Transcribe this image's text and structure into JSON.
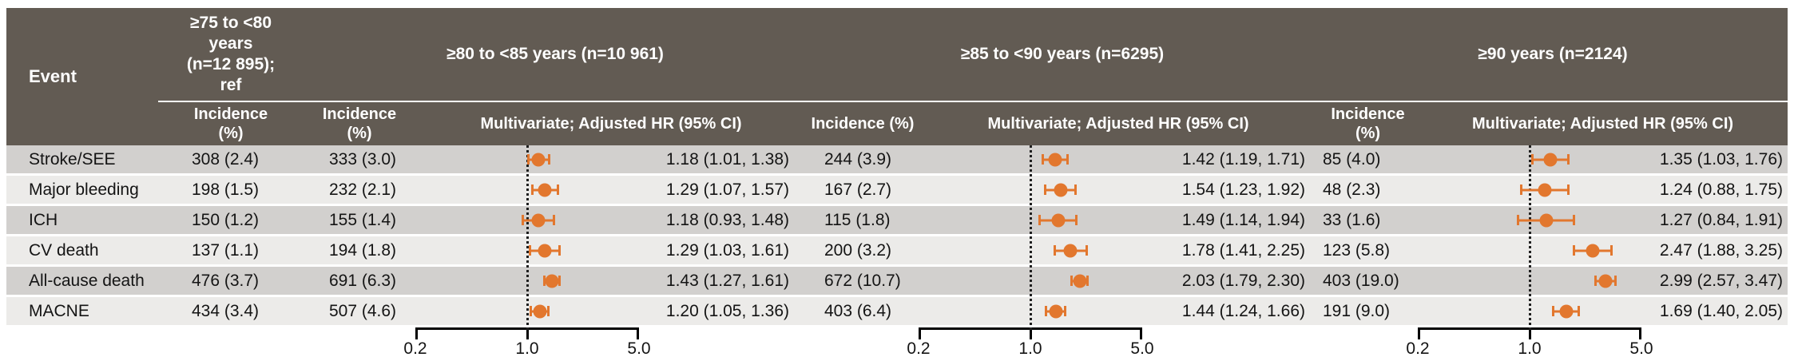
{
  "colors": {
    "header_bg": "#625B53",
    "header_text": "#ffffff",
    "row_dark": "#d2d0ce",
    "row_light": "#ecebe9",
    "marker_orange": "#E2772E",
    "axis_black": "#000000"
  },
  "chart_data": {
    "type": "forest",
    "x_scale": "log",
    "x_min": 0.2,
    "x_max": 5.0,
    "x_ticks": [
      0.2,
      1.0,
      5.0
    ],
    "x_tick_labels": [
      "0.2",
      "1.0",
      "5.0"
    ],
    "reference_line": 1.0,
    "event_header": "Event",
    "events": [
      "Stroke/SEE",
      "Major bleeding",
      "ICH",
      "CV death",
      "All-cause death",
      "MACNE"
    ],
    "reference_group": {
      "title": "≥75 to <80\nyears\n(n=12 895);\nref",
      "incidence_header": "Incidence\n(%)",
      "incidence": [
        "308 (2.4)",
        "198 (1.5)",
        "150 (1.2)",
        "137 (1.1)",
        "476 (3.7)",
        "434 (3.4)"
      ]
    },
    "groups": [
      {
        "title": "≥80 to <85 years (n=10 961)",
        "incidence_header": "Incidence\n(%)",
        "hr_header": "Multivariate; Adjusted HR (95% CI)",
        "incidence": [
          "333 (3.0)",
          "232 (2.1)",
          "155 (1.4)",
          "194 (1.8)",
          "691 (6.3)",
          "507 (4.6)"
        ],
        "hr": [
          [
            1.18,
            1.01,
            1.38
          ],
          [
            1.29,
            1.07,
            1.57
          ],
          [
            1.18,
            0.93,
            1.48
          ],
          [
            1.29,
            1.03,
            1.61
          ],
          [
            1.43,
            1.27,
            1.61
          ],
          [
            1.2,
            1.05,
            1.36
          ]
        ],
        "hr_labels": [
          "1.18 (1.01, 1.38)",
          "1.29 (1.07, 1.57)",
          "1.18 (0.93, 1.48)",
          "1.29 (1.03, 1.61)",
          "1.43 (1.27, 1.61)",
          "1.20 (1.05, 1.36)"
        ]
      },
      {
        "title": "≥85 to <90 years (n=6295)",
        "incidence_header": "Incidence (%)",
        "hr_header": "Multivariate; Adjusted HR (95% CI)",
        "incidence": [
          "244 (3.9)",
          "167 (2.7)",
          "115 (1.8)",
          "200 (3.2)",
          "672 (10.7)",
          "403 (6.4)"
        ],
        "hr": [
          [
            1.42,
            1.19,
            1.71
          ],
          [
            1.54,
            1.23,
            1.92
          ],
          [
            1.49,
            1.14,
            1.94
          ],
          [
            1.78,
            1.41,
            2.25
          ],
          [
            2.03,
            1.79,
            2.3
          ],
          [
            1.44,
            1.24,
            1.66
          ]
        ],
        "hr_labels": [
          "1.42 (1.19, 1.71)",
          "1.54 (1.23, 1.92)",
          "1.49 (1.14, 1.94)",
          "1.78 (1.41, 2.25)",
          "2.03 (1.79, 2.30)",
          "1.44 (1.24, 1.66)"
        ]
      },
      {
        "title": "≥90 years (n=2124)",
        "incidence_header": "Incidence\n(%)",
        "hr_header": "Multivariate; Adjusted HR (95% CI)",
        "incidence": [
          "85 (4.0)",
          "48 (2.3)",
          "33 (1.6)",
          "123 (5.8)",
          "403 (19.0)",
          "191 (9.0)"
        ],
        "hr": [
          [
            1.35,
            1.03,
            1.76
          ],
          [
            1.24,
            0.88,
            1.75
          ],
          [
            1.27,
            0.84,
            1.91
          ],
          [
            2.47,
            1.88,
            3.25
          ],
          [
            2.99,
            2.57,
            3.47
          ],
          [
            1.69,
            1.4,
            2.05
          ]
        ],
        "hr_labels": [
          "1.35 (1.03, 1.76)",
          "1.24 (0.88, 1.75)",
          "1.27 (0.84, 1.91)",
          "2.47 (1.88, 3.25)",
          "2.99 (2.57, 3.47)",
          "1.69 (1.40, 2.05)"
        ]
      }
    ]
  }
}
